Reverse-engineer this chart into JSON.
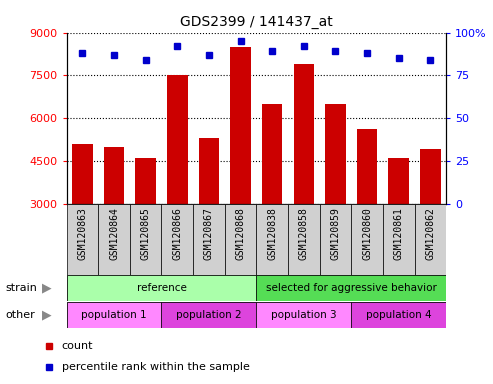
{
  "title": "GDS2399 / 141437_at",
  "samples": [
    "GSM120863",
    "GSM120864",
    "GSM120865",
    "GSM120866",
    "GSM120867",
    "GSM120868",
    "GSM120838",
    "GSM120858",
    "GSM120859",
    "GSM120860",
    "GSM120861",
    "GSM120862"
  ],
  "counts": [
    5100,
    5000,
    4600,
    7500,
    5300,
    8500,
    6500,
    7900,
    6500,
    5600,
    4600,
    4900
  ],
  "percentile_ranks": [
    88,
    87,
    84,
    92,
    87,
    95,
    89,
    92,
    89,
    88,
    85,
    84
  ],
  "ylim_left": [
    3000,
    9000
  ],
  "ylim_right": [
    0,
    100
  ],
  "yticks_left": [
    3000,
    4500,
    6000,
    7500,
    9000
  ],
  "yticks_right": [
    0,
    25,
    50,
    75,
    100
  ],
  "bar_color": "#CC0000",
  "dot_color": "#0000CC",
  "plot_bg": "#FFFFFF",
  "xtick_bg": "#D0D0D0",
  "strain_groups": [
    {
      "label": "reference",
      "start": 0,
      "end": 6,
      "color": "#AAFFAA"
    },
    {
      "label": "selected for aggressive behavior",
      "start": 6,
      "end": 12,
      "color": "#55DD55"
    }
  ],
  "other_groups": [
    {
      "label": "population 1",
      "start": 0,
      "end": 3,
      "color": "#FF88FF"
    },
    {
      "label": "population 2",
      "start": 3,
      "end": 6,
      "color": "#DD44DD"
    },
    {
      "label": "population 3",
      "start": 6,
      "end": 9,
      "color": "#FF88FF"
    },
    {
      "label": "population 4",
      "start": 9,
      "end": 12,
      "color": "#DD44DD"
    }
  ],
  "strain_label": "strain",
  "other_label": "other",
  "legend_count_label": "count",
  "legend_pct_label": "percentile rank within the sample",
  "right_axis_100_label": "100%"
}
